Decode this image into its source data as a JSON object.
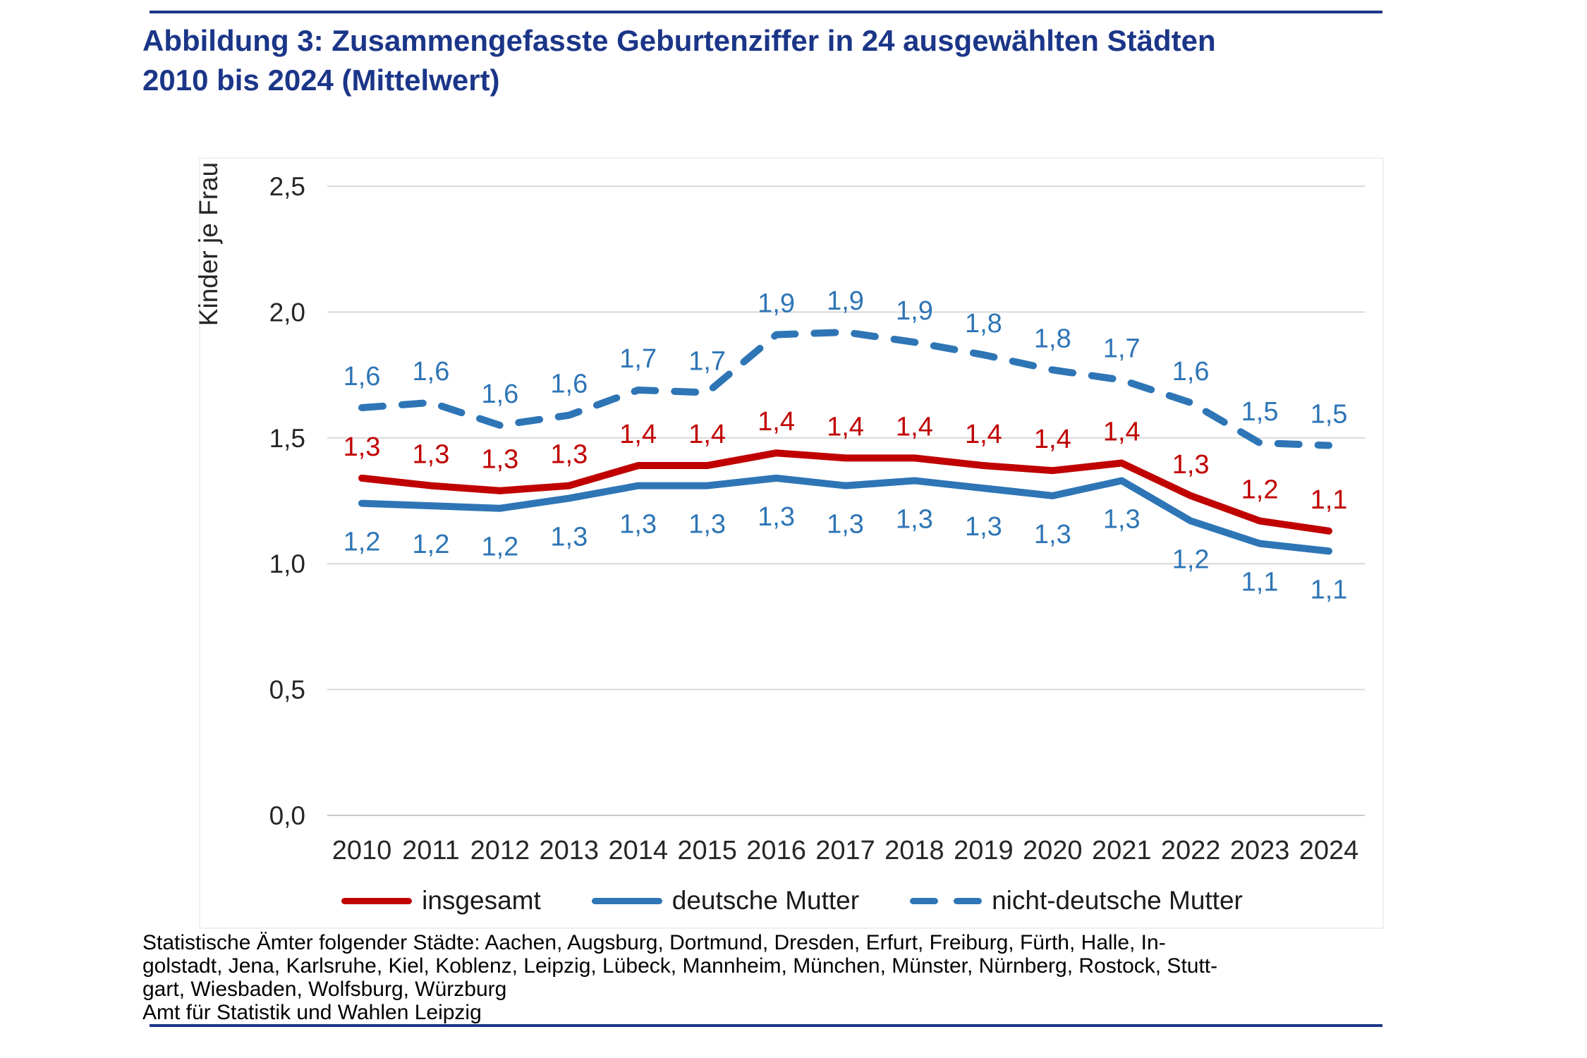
{
  "page": {
    "title_line1": "Abbildung 3: Zusammengefasste Geburtenziffer in 24 ausgewählten Städten",
    "title_line2": "2010 bis 2024 (Mittelwert)",
    "footer_lines": [
      "Statistische Ämter folgender Städte: Aachen, Augsburg, Dortmund, Dresden, Erfurt, Freiburg, Fürth, Halle, In-",
      "golstadt, Jena, Karlsruhe, Kiel, Koblenz, Leipzig, Lübeck, Mannheim, München, Münster, Nürnberg, Rostock, Stutt-",
      "gart, Wiesbaden, Wolfsburg, Würzburg",
      "Amt für Statistik und Wahlen Leipzig"
    ],
    "accent_color": "#1b3688"
  },
  "chart_data": {
    "type": "line",
    "title": "Abbildung 3: Zusammengefasste Geburtenziffer in 24 ausgewählten Städten 2010 bis 2024 (Mittelwert)",
    "xlabel": "",
    "ylabel": "Kinder je Frau",
    "ylim": [
      0,
      2.5
    ],
    "ytick_step": 0.5,
    "ytick_labels": [
      "0,0",
      "0,5",
      "1,0",
      "1,5",
      "2,0",
      "2,5"
    ],
    "grid": true,
    "legend_position": "bottom",
    "grid_color": "#d9d9d9",
    "axis_text_color": "#262626",
    "categories": [
      "2010",
      "2011",
      "2012",
      "2013",
      "2014",
      "2015",
      "2016",
      "2017",
      "2018",
      "2019",
      "2020",
      "2021",
      "2022",
      "2023",
      "2024"
    ],
    "series": [
      {
        "name": "insgesamt",
        "color": "#c00000",
        "style": "solid",
        "label_offset": "above",
        "labels": [
          "1,3",
          "1,3",
          "1,3",
          "1,3",
          "1,4",
          "1,4",
          "1,4",
          "1,4",
          "1,4",
          "1,4",
          "1,4",
          "1,4",
          "1,3",
          "1,2",
          "1,1"
        ],
        "values": [
          1.34,
          1.31,
          1.29,
          1.31,
          1.39,
          1.39,
          1.44,
          1.42,
          1.42,
          1.39,
          1.37,
          1.4,
          1.27,
          1.17,
          1.13
        ]
      },
      {
        "name": "deutsche Mutter",
        "color": "#2e75b6",
        "style": "solid",
        "label_offset": "below",
        "labels": [
          "1,2",
          "1,2",
          "1,2",
          "1,3",
          "1,3",
          "1,3",
          "1,3",
          "1,3",
          "1,3",
          "1,3",
          "1,3",
          "1,3",
          "1,2",
          "1,1",
          "1,1"
        ],
        "values": [
          1.24,
          1.23,
          1.22,
          1.26,
          1.31,
          1.31,
          1.34,
          1.31,
          1.33,
          1.3,
          1.27,
          1.33,
          1.17,
          1.08,
          1.05
        ]
      },
      {
        "name": "nicht-deutsche Mutter",
        "color": "#2e75b6",
        "style": "dashed",
        "label_offset": "above",
        "labels": [
          "1,6",
          "1,6",
          "1,6",
          "1,6",
          "1,7",
          "1,7",
          "1,9",
          "1,9",
          "1,9",
          "1,8",
          "1,8",
          "1,7",
          "1,6",
          "1,5",
          "1,5"
        ],
        "values": [
          1.62,
          1.64,
          1.55,
          1.59,
          1.69,
          1.68,
          1.91,
          1.92,
          1.88,
          1.83,
          1.77,
          1.73,
          1.64,
          1.48,
          1.47
        ]
      }
    ]
  }
}
